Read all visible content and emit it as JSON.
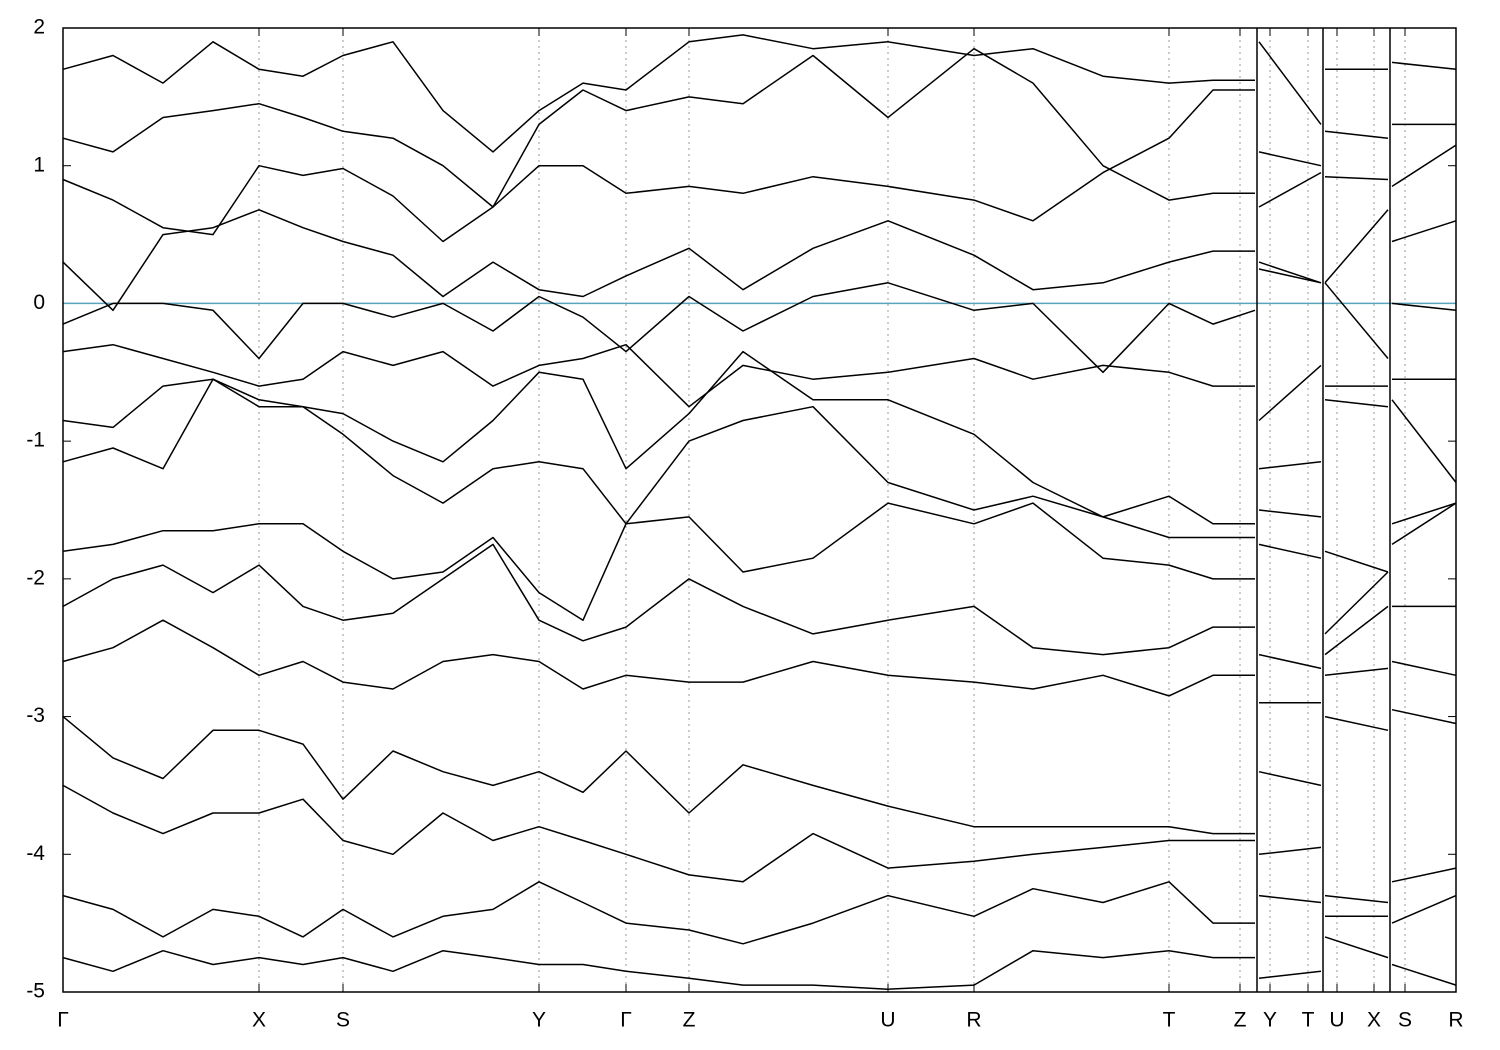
{
  "chart_data": {
    "type": "line",
    "x": [
      0,
      0.5,
      1.0,
      1.5,
      1.96,
      2.4,
      2.8,
      3.3,
      3.8,
      4.3,
      4.76,
      5.2,
      5.63,
      6.26,
      6.8,
      7.5,
      8.25,
      9.11,
      9.7,
      10.4,
      11.06,
      11.5,
      11.92,
      11.94,
      11.96,
      12.58,
      12.6,
      12.62,
      13.25,
      13.27,
      13.29,
      13.93
    ],
    "xlim": [
      0,
      13.93
    ],
    "xticks": [
      {
        "value": 0,
        "label": "Γ"
      },
      {
        "value": 1.96,
        "label": "X"
      },
      {
        "value": 2.8,
        "label": "S"
      },
      {
        "value": 4.76,
        "label": "Y"
      },
      {
        "value": 5.63,
        "label": "Γ"
      },
      {
        "value": 6.26,
        "label": "Z"
      },
      {
        "value": 8.25,
        "label": "U"
      },
      {
        "value": 9.11,
        "label": "R"
      },
      {
        "value": 11.06,
        "label": "T"
      },
      {
        "value": 11.77,
        "label": "Z"
      },
      {
        "value": 12.07,
        "label": "Y"
      },
      {
        "value": 12.45,
        "label": "T"
      },
      {
        "value": 12.74,
        "label": "U"
      },
      {
        "value": 13.11,
        "label": "X"
      },
      {
        "value": 13.42,
        "label": "S"
      },
      {
        "value": 13.93,
        "label": "R"
      }
    ],
    "ylim": [
      -5,
      2
    ],
    "yticks": [
      2,
      1,
      0,
      -1,
      -2,
      -3,
      -4,
      -5
    ],
    "grid": true,
    "path_breaks": [
      11.94,
      12.6,
      13.27
    ],
    "fermi_level": 0,
    "fermi_color": "#5ba3bf",
    "color": "#000000",
    "series": [
      {
        "values": [
          -0.15,
          0,
          0,
          -0.05,
          -0.4,
          0.0,
          0.0,
          -0.1,
          0,
          -0.2,
          0.05,
          -0.1,
          -0.35,
          0.05,
          -0.2,
          0.05,
          0.15,
          -0.05,
          0.0,
          -0.5,
          0.0,
          -0.15,
          -0.05,
          null,
          0.3,
          0.15,
          null,
          0.15,
          -0.4,
          null,
          0.0,
          -0.05
        ]
      },
      {
        "values": [
          0.3,
          -0.05,
          0.5,
          0.55,
          0.68,
          0.55,
          0.45,
          0.35,
          0.05,
          0.3,
          0.1,
          0.05,
          0.2,
          0.4,
          0.1,
          0.4,
          0.6,
          0.35,
          0.1,
          0.15,
          0.3,
          0.38,
          0.38,
          null,
          0.25,
          0.15,
          null,
          0.15,
          0.68,
          null,
          0.45,
          0.6
        ]
      },
      {
        "values": [
          0.9,
          0.75,
          0.55,
          0.5,
          1.0,
          0.93,
          0.98,
          0.78,
          0.45,
          0.7,
          1.0,
          1.0,
          0.8,
          0.85,
          0.8,
          0.92,
          0.85,
          0.75,
          0.6,
          0.95,
          1.2,
          1.55,
          1.55,
          null,
          1.1,
          1.0,
          null,
          0.92,
          0.9,
          null,
          0.85,
          1.15
        ]
      },
      {
        "values": [
          1.2,
          1.1,
          1.35,
          1.4,
          1.45,
          1.35,
          1.25,
          1.2,
          1.0,
          0.7,
          1.3,
          1.55,
          1.4,
          1.5,
          1.45,
          1.8,
          1.35,
          1.85,
          1.6,
          1.0,
          0.75,
          0.8,
          0.8,
          null,
          0.7,
          0.95,
          null,
          1.25,
          1.2,
          null,
          1.3,
          1.3
        ]
      },
      {
        "values": [
          1.7,
          1.8,
          1.6,
          1.9,
          1.7,
          1.65,
          1.8,
          1.9,
          1.4,
          1.1,
          1.4,
          1.6,
          1.55,
          1.9,
          1.95,
          1.85,
          1.9,
          1.8,
          1.85,
          1.65,
          1.6,
          1.62,
          1.62,
          null,
          1.9,
          1.3,
          null,
          1.7,
          1.7,
          null,
          1.75,
          1.7
        ]
      },
      {
        "values": [
          -0.35,
          -0.3,
          -0.4,
          -0.5,
          -0.6,
          -0.55,
          -0.35,
          -0.45,
          -0.35,
          -0.6,
          -0.45,
          -0.4,
          -0.3,
          -0.75,
          -0.45,
          -0.55,
          -0.5,
          -0.4,
          -0.55,
          -0.45,
          -0.5,
          -0.6,
          -0.6,
          null,
          -0.85,
          -0.45,
          null,
          -0.6,
          -0.6,
          null,
          -0.55,
          -0.55
        ]
      },
      {
        "values": [
          -0.85,
          -0.9,
          -0.6,
          -0.55,
          -0.7,
          -0.75,
          -0.8,
          -1.0,
          -1.15,
          -0.85,
          -0.5,
          -0.55,
          -1.2,
          -0.8,
          -0.35,
          -0.7,
          -0.7,
          -0.95,
          -1.3,
          -1.55,
          -1.4,
          -1.6,
          -1.6,
          null,
          -1.2,
          -1.15,
          null,
          -0.7,
          -0.75,
          null,
          -0.7,
          -1.3
        ]
      },
      {
        "values": [
          -1.15,
          -1.05,
          -1.2,
          -0.55,
          -0.75,
          -0.75,
          -0.95,
          -1.25,
          -1.45,
          -1.2,
          -1.15,
          -1.2,
          -1.6,
          -1.0,
          -0.85,
          -0.75,
          -1.3,
          -1.5,
          -1.4,
          -1.55,
          -1.7,
          -1.7,
          -1.7,
          null,
          -1.5,
          -1.55,
          null,
          -1.8,
          -1.95,
          null,
          -1.75,
          -1.45
        ]
      },
      {
        "values": [
          -1.8,
          -1.75,
          -1.65,
          -1.65,
          -1.6,
          -1.6,
          -1.8,
          -2.0,
          -1.95,
          -1.7,
          -2.1,
          -2.3,
          -1.6,
          -1.55,
          -1.95,
          -1.85,
          -1.45,
          -1.6,
          -1.45,
          -1.85,
          -1.9,
          -2.0,
          -2.0,
          null,
          -1.75,
          -1.85,
          null,
          -2.4,
          -1.95,
          null,
          -1.6,
          -1.45
        ]
      },
      {
        "values": [
          -2.2,
          -2.0,
          -1.9,
          -2.1,
          -1.9,
          -2.2,
          -2.3,
          -2.25,
          -2.0,
          -1.75,
          -2.3,
          -2.45,
          -2.35,
          -2.0,
          -2.2,
          -2.4,
          -2.3,
          -2.2,
          -2.5,
          -2.55,
          -2.5,
          -2.35,
          -2.35,
          null,
          -2.55,
          -2.65,
          null,
          -2.55,
          -2.2,
          null,
          -2.2,
          -2.2
        ]
      },
      {
        "values": [
          -2.6,
          -2.5,
          -2.3,
          -2.5,
          -2.7,
          -2.6,
          -2.75,
          -2.8,
          -2.6,
          -2.55,
          -2.6,
          -2.8,
          -2.7,
          -2.75,
          -2.75,
          -2.6,
          -2.7,
          -2.75,
          -2.8,
          -2.7,
          -2.85,
          -2.7,
          -2.7,
          null,
          -2.9,
          -2.9,
          null,
          -2.7,
          -2.65,
          null,
          -2.6,
          -2.7
        ]
      },
      {
        "values": [
          -3.0,
          -3.3,
          -3.45,
          -3.1,
          -3.1,
          -3.2,
          -3.6,
          -3.25,
          -3.4,
          -3.5,
          -3.4,
          -3.55,
          -3.25,
          -3.7,
          -3.35,
          -3.5,
          -3.65,
          -3.8,
          -3.8,
          -3.8,
          -3.8,
          -3.85,
          -3.85,
          null,
          -3.4,
          -3.5,
          null,
          -3.0,
          -3.1,
          null,
          -2.95,
          -3.05
        ]
      },
      {
        "values": [
          -3.5,
          -3.7,
          -3.85,
          -3.7,
          -3.7,
          -3.6,
          -3.9,
          -4.0,
          -3.7,
          -3.9,
          -3.8,
          -3.9,
          -4.0,
          -4.15,
          -4.2,
          -3.85,
          -4.1,
          -4.05,
          -4.0,
          -3.95,
          -3.9,
          -3.9,
          -3.9,
          null,
          -4.0,
          -3.95,
          null,
          -4.3,
          -4.35,
          null,
          -4.2,
          -4.1
        ]
      },
      {
        "values": [
          -4.3,
          -4.4,
          -4.6,
          -4.4,
          -4.45,
          -4.6,
          -4.4,
          -4.6,
          -4.45,
          -4.4,
          -4.2,
          -4.35,
          -4.5,
          -4.55,
          -4.65,
          -4.5,
          -4.3,
          -4.45,
          -4.25,
          -4.35,
          -4.2,
          -4.5,
          -4.5,
          null,
          -4.3,
          -4.35,
          null,
          -4.45,
          -4.45,
          null,
          -4.5,
          -4.3
        ]
      },
      {
        "values": [
          -4.75,
          -4.85,
          -4.7,
          -4.8,
          -4.75,
          -4.8,
          -4.75,
          -4.85,
          -4.7,
          -4.75,
          -4.8,
          -4.8,
          -4.85,
          -4.9,
          -4.95,
          -4.95,
          -4.98,
          -4.95,
          -4.7,
          -4.75,
          -4.7,
          -4.75,
          -4.75,
          null,
          -4.9,
          -4.85,
          null,
          -4.6,
          -4.75,
          null,
          -4.8,
          -4.95
        ]
      }
    ]
  }
}
